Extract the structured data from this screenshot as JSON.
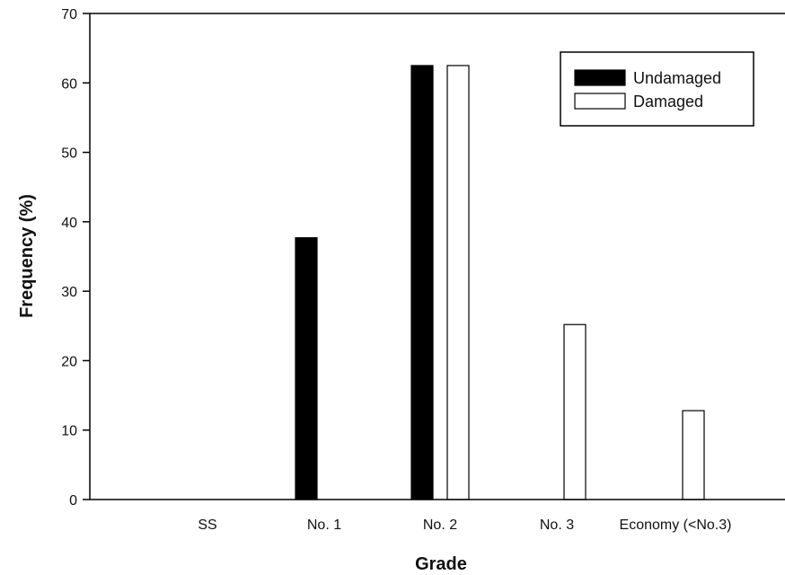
{
  "chart_data": {
    "type": "bar",
    "categories": [
      "SS",
      "No. 1",
      "No. 2",
      "No. 3",
      "Economy (<No.3)"
    ],
    "series": [
      {
        "name": "Undamaged",
        "values": [
          0,
          37.7,
          62.5,
          0,
          0
        ],
        "color": "#000000"
      },
      {
        "name": "Damaged",
        "values": [
          0,
          0,
          62.5,
          25.2,
          12.8
        ],
        "color": "#ffffff"
      }
    ],
    "title": "",
    "xlabel": "Grade",
    "ylabel": "Frequency (%)",
    "ylim": [
      0,
      70
    ],
    "yticks": [
      0,
      10,
      20,
      30,
      40,
      50,
      60,
      70
    ],
    "grid": false,
    "legend_position": "top-right"
  }
}
